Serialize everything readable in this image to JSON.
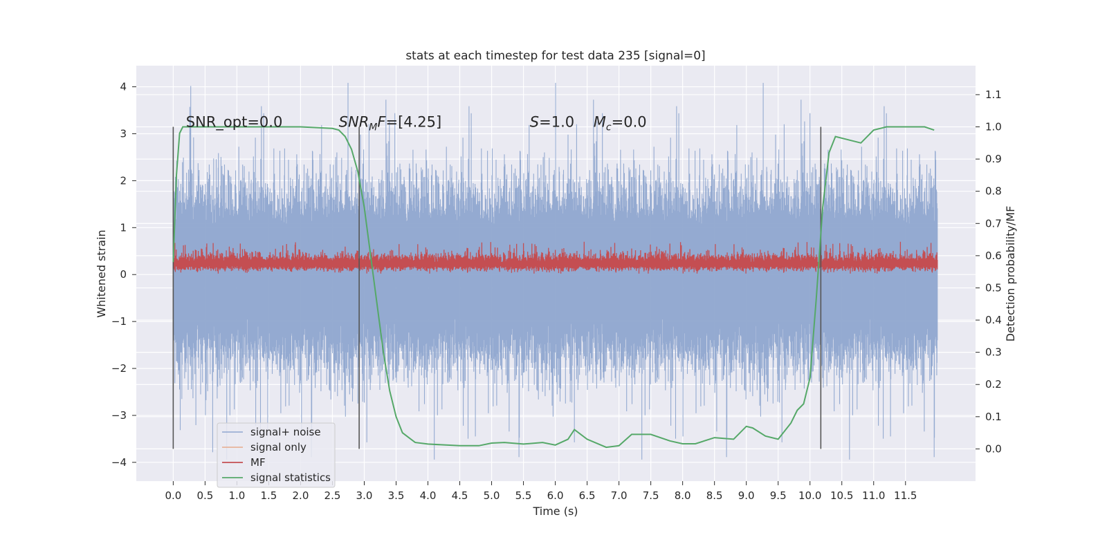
{
  "chart_data": {
    "type": "line",
    "title": "stats at each timestep for test data 235 [signal=0]",
    "xlabel": "Time (s)",
    "ylabel_left": "Whitened strain",
    "ylabel_right": "Detection probability/MF",
    "xlim": [
      -0.58,
      12.6
    ],
    "ylim_left": [
      -4.4,
      4.45
    ],
    "ylim_right": [
      -0.1,
      1.19
    ],
    "x_ticks": [
      0.0,
      0.5,
      1.0,
      1.5,
      2.0,
      2.5,
      3.0,
      3.5,
      4.0,
      4.5,
      5.0,
      5.5,
      6.0,
      6.5,
      7.0,
      7.5,
      8.0,
      8.5,
      9.0,
      9.5,
      10.0,
      10.5,
      11.0,
      11.5
    ],
    "x_tick_labels": [
      "0.0",
      "0.5",
      "1.0",
      "1.5",
      "2.0",
      "2.5",
      "3.0",
      "3.5",
      "4.0",
      "4.5",
      "5.0",
      "5.5",
      "6.0",
      "6.5",
      "7.0",
      "7.5",
      "8.0",
      "8.5",
      "9.0",
      "9.5",
      "10.0",
      "10.5",
      "11.0",
      "11.5"
    ],
    "y_left_ticks": [
      -4,
      -3,
      -2,
      -1,
      0,
      1,
      2,
      3,
      4
    ],
    "y_left_tick_labels": [
      "−4",
      "−3",
      "−2",
      "−1",
      "0",
      "1",
      "2",
      "3",
      "4"
    ],
    "y_right_ticks": [
      0.0,
      0.1,
      0.2,
      0.3,
      0.4,
      0.5,
      0.6,
      0.7,
      0.8,
      0.9,
      1.0,
      1.1
    ],
    "y_right_tick_labels": [
      "0.0",
      "0.1",
      "0.2",
      "0.3",
      "0.4",
      "0.5",
      "0.6",
      "0.7",
      "0.8",
      "0.9",
      "1.0",
      "1.1"
    ],
    "grid": true,
    "legend_placement": "lower-left",
    "colors": {
      "background": "#eaeaf2",
      "grid": "#ffffff",
      "signal_noise": "#8fa6cf",
      "signal_only": "#e8a98b",
      "mf": "#c44e52",
      "signal_statistics": "#55a868",
      "vlines": "#555555"
    },
    "series": [
      {
        "name": "signal+ noise",
        "axis": "left",
        "kind": "noise_band",
        "x_range": [
          0.0,
          12.0
        ],
        "typical_range": [
          -2.0,
          2.0
        ],
        "extreme_range": [
          -4.0,
          4.1
        ]
      },
      {
        "name": "signal only",
        "axis": "left",
        "x": [],
        "y": []
      },
      {
        "name": "MF",
        "axis": "left",
        "kind": "noise_band",
        "x_range": [
          0.0,
          12.0
        ],
        "typical_range": [
          0.05,
          0.5
        ],
        "extreme_range": [
          0.0,
          0.7
        ]
      },
      {
        "name": "signal statistics",
        "axis": "right",
        "x": [
          0.0,
          0.05,
          0.1,
          0.15,
          0.25,
          0.5,
          1.0,
          1.5,
          2.0,
          2.5,
          2.6,
          2.7,
          2.8,
          2.9,
          3.0,
          3.1,
          3.2,
          3.3,
          3.4,
          3.5,
          3.6,
          3.8,
          4.0,
          4.5,
          4.8,
          5.0,
          5.2,
          5.5,
          5.8,
          6.0,
          6.2,
          6.3,
          6.5,
          6.8,
          7.0,
          7.2,
          7.5,
          7.8,
          8.0,
          8.2,
          8.5,
          8.8,
          9.0,
          9.1,
          9.3,
          9.5,
          9.7,
          9.8,
          9.9,
          10.0,
          10.1,
          10.2,
          10.3,
          10.4,
          10.6,
          10.8,
          11.0,
          11.2,
          11.5,
          11.8,
          11.95
        ],
        "y": [
          0.58,
          0.85,
          0.98,
          1.0,
          1.0,
          1.0,
          1.0,
          1.0,
          1.0,
          0.995,
          0.99,
          0.97,
          0.93,
          0.86,
          0.75,
          0.6,
          0.45,
          0.3,
          0.18,
          0.1,
          0.05,
          0.02,
          0.015,
          0.01,
          0.01,
          0.018,
          0.02,
          0.015,
          0.02,
          0.012,
          0.03,
          0.06,
          0.03,
          0.005,
          0.01,
          0.045,
          0.045,
          0.025,
          0.016,
          0.016,
          0.035,
          0.03,
          0.07,
          0.065,
          0.04,
          0.03,
          0.08,
          0.12,
          0.14,
          0.22,
          0.47,
          0.75,
          0.92,
          0.97,
          0.96,
          0.95,
          0.99,
          1.0,
          1.0,
          1.0,
          0.99
        ]
      }
    ],
    "vertical_lines": [
      {
        "x": 0.0,
        "from": 0.0,
        "to": 1.0
      },
      {
        "x": 2.92,
        "from": 0.0,
        "to": 1.0
      },
      {
        "x": 10.17,
        "from": 0.0,
        "to": 1.0
      }
    ],
    "annotations": [
      {
        "text": "SNR_opt=0.0",
        "x": 0.2,
        "y": 1.0
      },
      {
        "text": "SNRMF=[4.25]",
        "x": 2.6,
        "y": 1.0,
        "parts": [
          {
            "t": "SNR",
            "style": "italic"
          },
          {
            "t": "M",
            "style": "italic-sub"
          },
          {
            "t": "F",
            "style": "italic"
          },
          {
            "t": "=[4.25]",
            "style": "normal"
          }
        ]
      },
      {
        "text": "S=1.0",
        "x": 5.6,
        "y": 1.0,
        "parts": [
          {
            "t": "S",
            "style": "italic"
          },
          {
            "t": "=1.0",
            "style": "normal"
          }
        ]
      },
      {
        "text": "Mc=0.0",
        "x": 6.6,
        "y": 1.0,
        "parts": [
          {
            "t": "M",
            "style": "italic"
          },
          {
            "t": "c",
            "style": "italic-sub"
          },
          {
            "t": "=0.0",
            "style": "normal"
          }
        ]
      }
    ]
  }
}
